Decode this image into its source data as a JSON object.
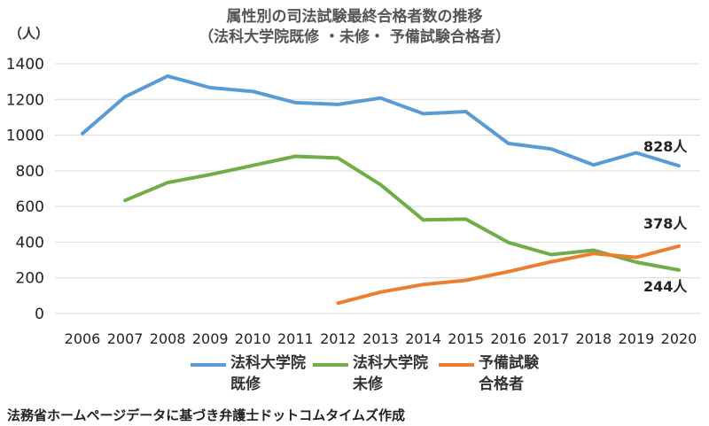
{
  "title_line1": "属性別の司法試験最終合格者数の推移",
  "title_line2": "（法科大学院既修 ・未修・ 予備試験合格者）",
  "unit_label": "（人）",
  "source": "法務省ホームページデータに基づき弁護士ドットコムタイムズ作成",
  "colors": {
    "kishu": "#5b9bd5",
    "mishu": "#70ad47",
    "yobi": "#ed7d31",
    "grid": "#d9d9d9"
  },
  "legend": [
    {
      "line1": "法科大学院",
      "line2": "既修",
      "color": "#5b9bd5"
    },
    {
      "line1": "法科大学院",
      "line2": "未修",
      "color": "#70ad47"
    },
    {
      "line1": "予備試験",
      "line2": "合格者",
      "color": "#ed7d31"
    }
  ],
  "chart_data": {
    "type": "line",
    "title": "属性別の司法試験最終合格者数の推移（法科大学院既修 ・未修・ 予備試験合格者）",
    "ylabel": "（人）",
    "ylim": [
      0,
      1400
    ],
    "yticks": [
      0,
      200,
      400,
      600,
      800,
      1000,
      1200,
      1400
    ],
    "grid": true,
    "legend_position": "bottom",
    "categories": [
      "2006",
      "2007",
      "2008",
      "2009",
      "2010",
      "2011",
      "2012",
      "2013",
      "2014",
      "2015",
      "2016",
      "2017",
      "2018",
      "2019",
      "2020"
    ],
    "series": [
      {
        "name": "法科大学院既修",
        "color": "#5b9bd5",
        "values": [
          1009,
          1215,
          1331,
          1266,
          1245,
          1182,
          1172,
          1208,
          1120,
          1132,
          953,
          923,
          833,
          901,
          828
        ]
      },
      {
        "name": "法科大学院未修",
        "color": "#70ad47",
        "values": [
          null,
          634,
          734,
          779,
          830,
          881,
          872,
          722,
          525,
          529,
          398,
          330,
          355,
          288,
          244
        ]
      },
      {
        "name": "予備試験合格者",
        "color": "#ed7d31",
        "values": [
          null,
          null,
          null,
          null,
          null,
          null,
          58,
          120,
          163,
          186,
          235,
          290,
          336,
          315,
          378
        ]
      }
    ],
    "annotations": [
      {
        "series": 0,
        "index": 14,
        "text": "828人"
      },
      {
        "series": 2,
        "index": 14,
        "text": "378人"
      },
      {
        "series": 1,
        "index": 14,
        "text": "244人"
      }
    ]
  }
}
